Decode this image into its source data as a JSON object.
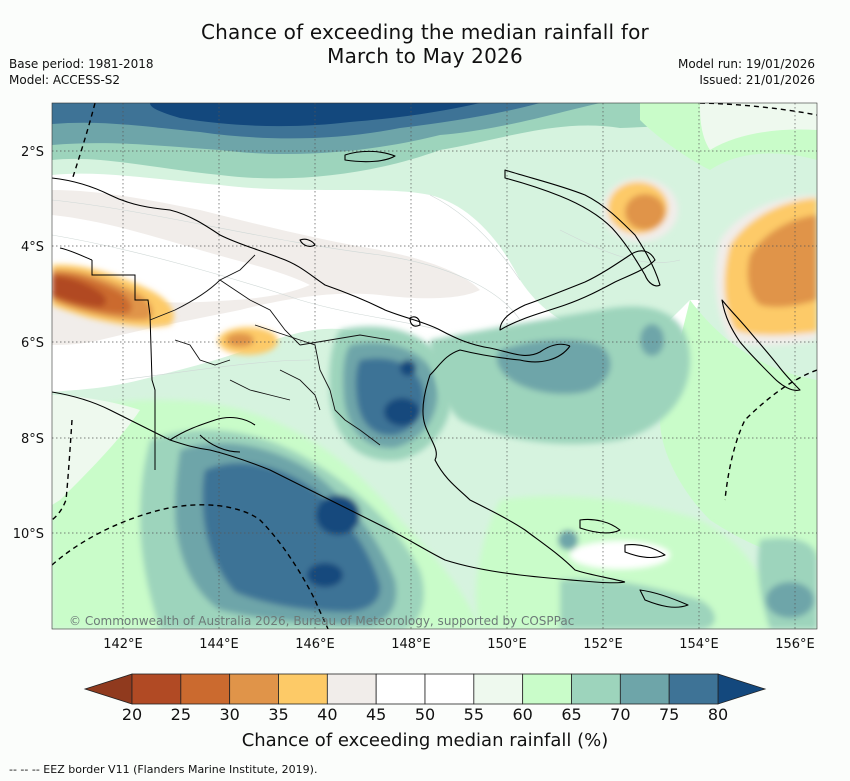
{
  "title": {
    "line1": "Chance of exceeding the median rainfall for",
    "line2": "March to May 2026"
  },
  "meta": {
    "base_period": "Base period: 1981-2018",
    "model": "Model: ACCESS-S2",
    "model_run": "Model run: 19/01/2026",
    "issued": "Issued: 21/01/2026"
  },
  "map": {
    "lon_range": [
      140.6,
      156.5
    ],
    "lat_range": [
      -11.95,
      -1.0
    ],
    "lon_ticks": [
      142,
      144,
      146,
      148,
      150,
      152,
      154,
      156
    ],
    "lon_tick_labels": [
      "142°E",
      "144°E",
      "146°E",
      "148°E",
      "150°E",
      "152°E",
      "154°E",
      "156°E"
    ],
    "lat_ticks": [
      -2,
      -4,
      -6,
      -8,
      -10
    ],
    "lat_tick_labels": [
      "2°S",
      "4°S",
      "6°S",
      "8°S",
      "10°S"
    ],
    "copyright": "© Commonwealth of Australia 2026, Bureau of Meteorology, supported by COSPPac"
  },
  "colorbar": {
    "levels": [
      20,
      25,
      30,
      35,
      40,
      45,
      50,
      55,
      60,
      65,
      70,
      75,
      80
    ],
    "level_labels": [
      "20",
      "25",
      "30",
      "35",
      "40",
      "45",
      "50",
      "55",
      "60",
      "65",
      "70",
      "75",
      "80"
    ],
    "colors": [
      "#b14a24",
      "#cb6a2f",
      "#e09449",
      "#fdca67",
      "#f1edea",
      "#ffffff",
      "#ffffff",
      "#eef9ee",
      "#c9fcc9",
      "#9dd4bc",
      "#6ea5a9",
      "#3e7396"
    ],
    "under_color": "#903a1e",
    "over_color": "#13487d",
    "title": "Chance of exceeding median rainfall (%)"
  },
  "legend": {
    "eez": "-- -- -- EEZ border V11 (Flanders Marine Institute, 2019)."
  }
}
